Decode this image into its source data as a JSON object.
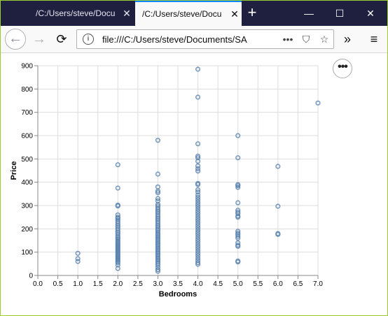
{
  "browser": {
    "tabs": [
      {
        "title": "/C:/Users/steve/Docu",
        "active": false
      },
      {
        "title": "/C:/Users/steve/Docu",
        "active": true
      }
    ],
    "tab_close_glyph": "✕",
    "new_tab_glyph": "+",
    "window_controls": {
      "minimize": "—",
      "maximize": "☐",
      "close": "✕"
    },
    "nav": {
      "back": "←",
      "forward": "→",
      "reload": "⟳",
      "overflow": "»",
      "menu": "≡"
    },
    "url": "file:///C:/Users/steve/Documents/SA",
    "url_actions": {
      "more": "•••",
      "pocket": "⛉",
      "bookmark": "☆"
    }
  },
  "content": {
    "actions_button": "•••"
  },
  "chart_data": {
    "type": "scatter",
    "xlabel": "Bedrooms",
    "ylabel": "Price",
    "xlim": [
      0,
      7
    ],
    "ylim": [
      0,
      900
    ],
    "x_ticks": [
      "0.0",
      "0.5",
      "1.0",
      "1.5",
      "2.0",
      "2.5",
      "3.0",
      "3.5",
      "4.0",
      "4.5",
      "5.0",
      "5.5",
      "6.0",
      "6.5",
      "7.0"
    ],
    "y_ticks": [
      "0",
      "100",
      "200",
      "300",
      "400",
      "500",
      "600",
      "700",
      "800",
      "900"
    ],
    "grid": true,
    "point_color": "#4c78a8",
    "points": [
      [
        1,
        95
      ],
      [
        1,
        72
      ],
      [
        1,
        60
      ],
      [
        2,
        475
      ],
      [
        2,
        375
      ],
      [
        2,
        302
      ],
      [
        2,
        298
      ],
      [
        2,
        260
      ],
      [
        2,
        250
      ],
      [
        2,
        245
      ],
      [
        2,
        238
      ],
      [
        2,
        230
      ],
      [
        2,
        222
      ],
      [
        2,
        215
      ],
      [
        2,
        208
      ],
      [
        2,
        200
      ],
      [
        2,
        192
      ],
      [
        2,
        185
      ],
      [
        2,
        178
      ],
      [
        2,
        170
      ],
      [
        2,
        163
      ],
      [
        2,
        157
      ],
      [
        2,
        150
      ],
      [
        2,
        144
      ],
      [
        2,
        138
      ],
      [
        2,
        132
      ],
      [
        2,
        126
      ],
      [
        2,
        120
      ],
      [
        2,
        114
      ],
      [
        2,
        108
      ],
      [
        2,
        102
      ],
      [
        2,
        96
      ],
      [
        2,
        90
      ],
      [
        2,
        84
      ],
      [
        2,
        78
      ],
      [
        2,
        72
      ],
      [
        2,
        66
      ],
      [
        2,
        60
      ],
      [
        2,
        54
      ],
      [
        2,
        45
      ],
      [
        2,
        30
      ],
      [
        3,
        580
      ],
      [
        3,
        435
      ],
      [
        3,
        380
      ],
      [
        3,
        362
      ],
      [
        3,
        355
      ],
      [
        3,
        330
      ],
      [
        3,
        320
      ],
      [
        3,
        305
      ],
      [
        3,
        298
      ],
      [
        3,
        290
      ],
      [
        3,
        282
      ],
      [
        3,
        275
      ],
      [
        3,
        268
      ],
      [
        3,
        260
      ],
      [
        3,
        252
      ],
      [
        3,
        245
      ],
      [
        3,
        238
      ],
      [
        3,
        230
      ],
      [
        3,
        222
      ],
      [
        3,
        215
      ],
      [
        3,
        208
      ],
      [
        3,
        200
      ],
      [
        3,
        193
      ],
      [
        3,
        186
      ],
      [
        3,
        179
      ],
      [
        3,
        172
      ],
      [
        3,
        165
      ],
      [
        3,
        158
      ],
      [
        3,
        151
      ],
      [
        3,
        144
      ],
      [
        3,
        137
      ],
      [
        3,
        130
      ],
      [
        3,
        123
      ],
      [
        3,
        116
      ],
      [
        3,
        109
      ],
      [
        3,
        102
      ],
      [
        3,
        95
      ],
      [
        3,
        88
      ],
      [
        3,
        81
      ],
      [
        3,
        74
      ],
      [
        3,
        67
      ],
      [
        3,
        60
      ],
      [
        3,
        53
      ],
      [
        3,
        45
      ],
      [
        3,
        35
      ],
      [
        3,
        25
      ],
      [
        3,
        18
      ],
      [
        4,
        885
      ],
      [
        4,
        765
      ],
      [
        4,
        565
      ],
      [
        4,
        512
      ],
      [
        4,
        505
      ],
      [
        4,
        490
      ],
      [
        4,
        470
      ],
      [
        4,
        458
      ],
      [
        4,
        448
      ],
      [
        4,
        395
      ],
      [
        4,
        390
      ],
      [
        4,
        368
      ],
      [
        4,
        358
      ],
      [
        4,
        345
      ],
      [
        4,
        335
      ],
      [
        4,
        325
      ],
      [
        4,
        315
      ],
      [
        4,
        305
      ],
      [
        4,
        295
      ],
      [
        4,
        285
      ],
      [
        4,
        275
      ],
      [
        4,
        265
      ],
      [
        4,
        255
      ],
      [
        4,
        245
      ],
      [
        4,
        235
      ],
      [
        4,
        225
      ],
      [
        4,
        215
      ],
      [
        4,
        205
      ],
      [
        4,
        195
      ],
      [
        4,
        185
      ],
      [
        4,
        175
      ],
      [
        4,
        165
      ],
      [
        4,
        155
      ],
      [
        4,
        145
      ],
      [
        4,
        135
      ],
      [
        4,
        125
      ],
      [
        4,
        115
      ],
      [
        4,
        105
      ],
      [
        4,
        95
      ],
      [
        4,
        85
      ],
      [
        4,
        75
      ],
      [
        4,
        65
      ],
      [
        4,
        55
      ],
      [
        4,
        48
      ],
      [
        5,
        600
      ],
      [
        5,
        505
      ],
      [
        5,
        390
      ],
      [
        5,
        385
      ],
      [
        5,
        378
      ],
      [
        5,
        312
      ],
      [
        5,
        280
      ],
      [
        5,
        272
      ],
      [
        5,
        265
      ],
      [
        5,
        255
      ],
      [
        5,
        250
      ],
      [
        5,
        190
      ],
      [
        5,
        182
      ],
      [
        5,
        175
      ],
      [
        5,
        168
      ],
      [
        5,
        160
      ],
      [
        5,
        140
      ],
      [
        5,
        130
      ],
      [
        5,
        125
      ],
      [
        5,
        62
      ],
      [
        5,
        58
      ],
      [
        6,
        468
      ],
      [
        6,
        297
      ],
      [
        6,
        180
      ],
      [
        6,
        176
      ],
      [
        7,
        740
      ]
    ]
  }
}
